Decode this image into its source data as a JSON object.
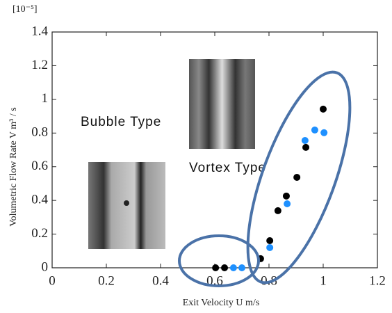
{
  "chart_data": {
    "type": "scatter",
    "y_unit_note": "[10⁻⁵]",
    "xlabel": "Exit Velocity U   m/s",
    "ylabel": "Volumetric Flow Rate V   m³ / s",
    "annotations": [
      "Bubble Type",
      "Vortex Type"
    ],
    "xlim": [
      0,
      1.2
    ],
    "xticks": [
      0,
      0.2,
      0.4,
      0.6,
      0.8,
      1,
      1.2
    ],
    "ylim": [
      0,
      1.4
    ],
    "yticks": [
      0,
      0.2,
      0.4,
      0.6,
      0.8,
      1,
      1.2,
      1.4
    ],
    "series": [
      {
        "color": "#000000",
        "x": [
          0.603,
          0.636,
          0.769,
          0.803,
          0.833,
          0.864,
          0.903,
          0.936,
          1.0
        ],
        "values": [
          0,
          0,
          0.054,
          0.161,
          0.339,
          0.426,
          0.537,
          0.715,
          0.942
        ]
      },
      {
        "color": "#1e90ff",
        "x": [
          0.669,
          0.7,
          0.803,
          0.867,
          0.933,
          0.969,
          1.003
        ],
        "values": [
          0,
          0,
          0.12,
          0.38,
          0.756,
          0.818,
          0.802
        ]
      }
    ]
  }
}
